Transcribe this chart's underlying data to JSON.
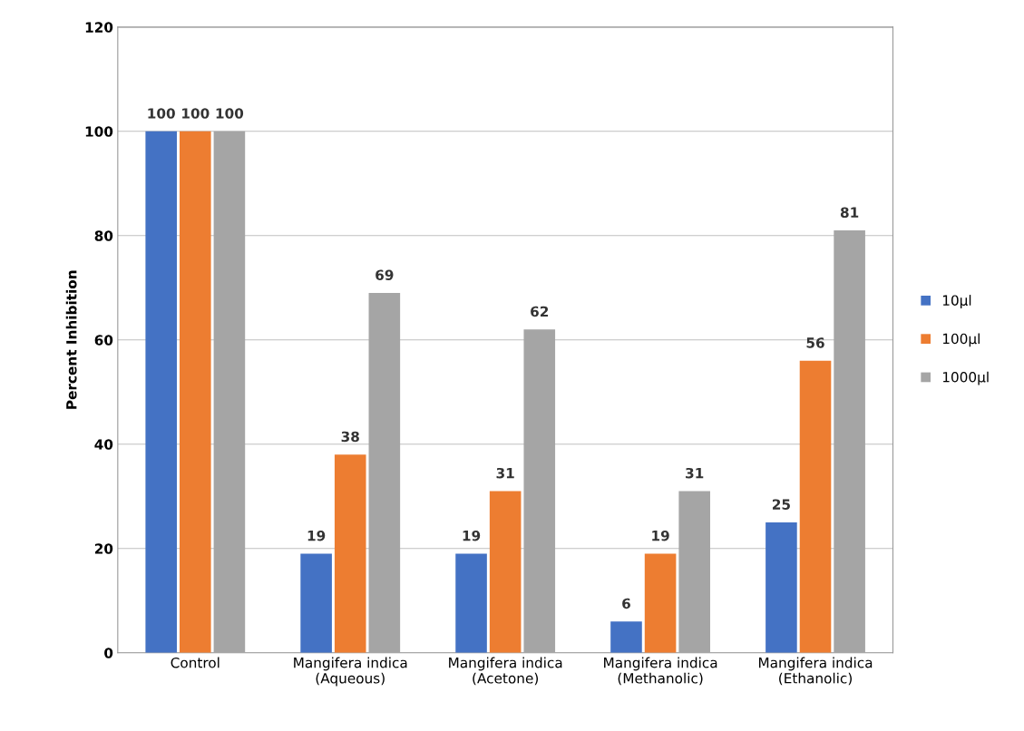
{
  "chart_data": {
    "type": "bar",
    "ylabel": "Percent Inhibition",
    "categories": [
      "Control",
      "Mangifera indica\n(Aqueous)",
      "Mangifera indica\n(Acetone)",
      "Mangifera indica\n(Methanolic)",
      "Mangifera indica\n(Ethanolic)"
    ],
    "series": [
      {
        "name": "10µl",
        "color": "#4472c4",
        "values": [
          100,
          19,
          19,
          6,
          25
        ]
      },
      {
        "name": "100µl",
        "color": "#ed7d31",
        "values": [
          100,
          38,
          31,
          19,
          56
        ]
      },
      {
        "name": "1000µl",
        "color": "#a5a5a5",
        "values": [
          100,
          69,
          62,
          31,
          81
        ]
      }
    ],
    "ylim": [
      0,
      120
    ],
    "yticks": [
      0,
      20,
      40,
      60,
      80,
      100,
      120
    ],
    "grid": "y",
    "legend": "right",
    "data_labels": true
  }
}
